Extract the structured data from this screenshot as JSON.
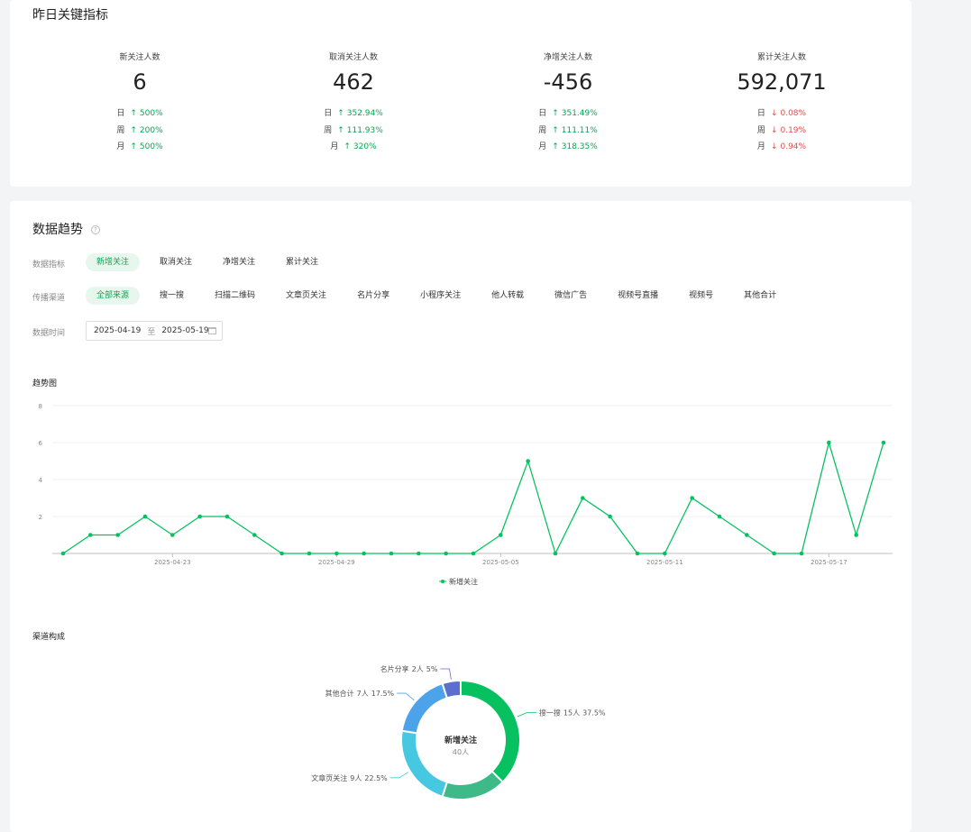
{
  "yesterday": {
    "title": "昨日关键指标",
    "metrics": [
      {
        "label": "新关注人数",
        "value": "6",
        "rows": [
          {
            "period": "日",
            "dir": "up",
            "arrow": "↑",
            "pct": "500%"
          },
          {
            "period": "周",
            "dir": "up",
            "arrow": "↑",
            "pct": "200%"
          },
          {
            "period": "月",
            "dir": "up",
            "arrow": "↑",
            "pct": "500%"
          }
        ]
      },
      {
        "label": "取消关注人数",
        "value": "462",
        "rows": [
          {
            "period": "日",
            "dir": "up",
            "arrow": "↑",
            "pct": "352.94%"
          },
          {
            "period": "周",
            "dir": "up",
            "arrow": "↑",
            "pct": "111.93%"
          },
          {
            "period": "月",
            "dir": "up",
            "arrow": "↑",
            "pct": "320%"
          }
        ]
      },
      {
        "label": "净增关注人数",
        "value": "-456",
        "rows": [
          {
            "period": "日",
            "dir": "up",
            "arrow": "↑",
            "pct": "351.49%"
          },
          {
            "period": "周",
            "dir": "up",
            "arrow": "↑",
            "pct": "111.11%"
          },
          {
            "period": "月",
            "dir": "up",
            "arrow": "↑",
            "pct": "318.35%"
          }
        ]
      },
      {
        "label": "累计关注人数",
        "value": "592,071",
        "rows": [
          {
            "period": "日",
            "dir": "down",
            "arrow": "↓",
            "pct": "0.08%"
          },
          {
            "period": "周",
            "dir": "down",
            "arrow": "↓",
            "pct": "0.19%"
          },
          {
            "period": "月",
            "dir": "down",
            "arrow": "↓",
            "pct": "0.94%"
          }
        ]
      }
    ]
  },
  "trend": {
    "title": "数据趋势",
    "help_icon": "question-circle-icon",
    "metric_filter": {
      "label": "数据指标",
      "options": [
        "新增关注",
        "取消关注",
        "净增关注",
        "累计关注"
      ],
      "active": 0
    },
    "source_filter": {
      "label": "传播渠道",
      "options": [
        "全部来源",
        "搜一搜",
        "扫描二维码",
        "文章页关注",
        "名片分享",
        "小程序关注",
        "他人转载",
        "微信广告",
        "视频号直播",
        "视频号",
        "其他合计"
      ],
      "active": 0
    },
    "date_filter": {
      "label": "数据时间",
      "start": "2025-04-19",
      "sep": "至",
      "end": "2025-05-19",
      "icon": "calendar-icon"
    },
    "chart_title": "趋势图",
    "channel_title": "渠道构成"
  },
  "colors": {
    "accent": "#07c160",
    "up": "#07a651",
    "down": "#e44b4b"
  },
  "chart_data": [
    {
      "type": "line",
      "ylim": [
        0,
        8
      ],
      "yticks": [
        2,
        4,
        6,
        8
      ],
      "x": [
        "2025-04-19",
        "2025-04-20",
        "2025-04-21",
        "2025-04-22",
        "2025-04-23",
        "2025-04-24",
        "2025-04-25",
        "2025-04-26",
        "2025-04-27",
        "2025-04-28",
        "2025-04-29",
        "2025-04-30",
        "2025-05-01",
        "2025-05-02",
        "2025-05-03",
        "2025-05-04",
        "2025-05-05",
        "2025-05-06",
        "2025-05-07",
        "2025-05-08",
        "2025-05-09",
        "2025-05-10",
        "2025-05-11",
        "2025-05-12",
        "2025-05-13",
        "2025-05-14",
        "2025-05-15",
        "2025-05-16",
        "2025-05-17",
        "2025-05-18",
        "2025-05-19"
      ],
      "xtick_labels": [
        {
          "index": 4,
          "label": "2025-04-23"
        },
        {
          "index": 10,
          "label": "2025-04-29"
        },
        {
          "index": 16,
          "label": "2025-05-05"
        },
        {
          "index": 22,
          "label": "2025-05-11"
        },
        {
          "index": 28,
          "label": "2025-05-17"
        }
      ],
      "series": [
        {
          "name": "新增关注",
          "color": "#07c160",
          "values": [
            0,
            1,
            1,
            2,
            1,
            2,
            2,
            1,
            0,
            0,
            0,
            0,
            0,
            0,
            0,
            0,
            1,
            5,
            0,
            3,
            2,
            0,
            0,
            3,
            2,
            1,
            0,
            0,
            6,
            1,
            6
          ]
        }
      ],
      "legend": "bottom-center",
      "grid": true
    },
    {
      "type": "pie",
      "center_label": "新增关注",
      "center_sub": "40人",
      "slices": [
        {
          "name": "搜一搜",
          "count": "15人",
          "pct": "37.5%",
          "value": 37.5,
          "color": "#07c160"
        },
        {
          "name": "",
          "count": "",
          "pct": "",
          "value": 17.5,
          "color": "#3dba87"
        },
        {
          "name": "文章页关注",
          "count": "9人",
          "pct": "22.5%",
          "value": 22.5,
          "color": "#45c8e0"
        },
        {
          "name": "其他合计",
          "count": "7人",
          "pct": "17.5%",
          "value": 17.5,
          "color": "#4da3ea"
        },
        {
          "name": "名片分享",
          "count": "2人",
          "pct": "5%",
          "value": 5,
          "color": "#5b6fcf"
        }
      ]
    }
  ]
}
